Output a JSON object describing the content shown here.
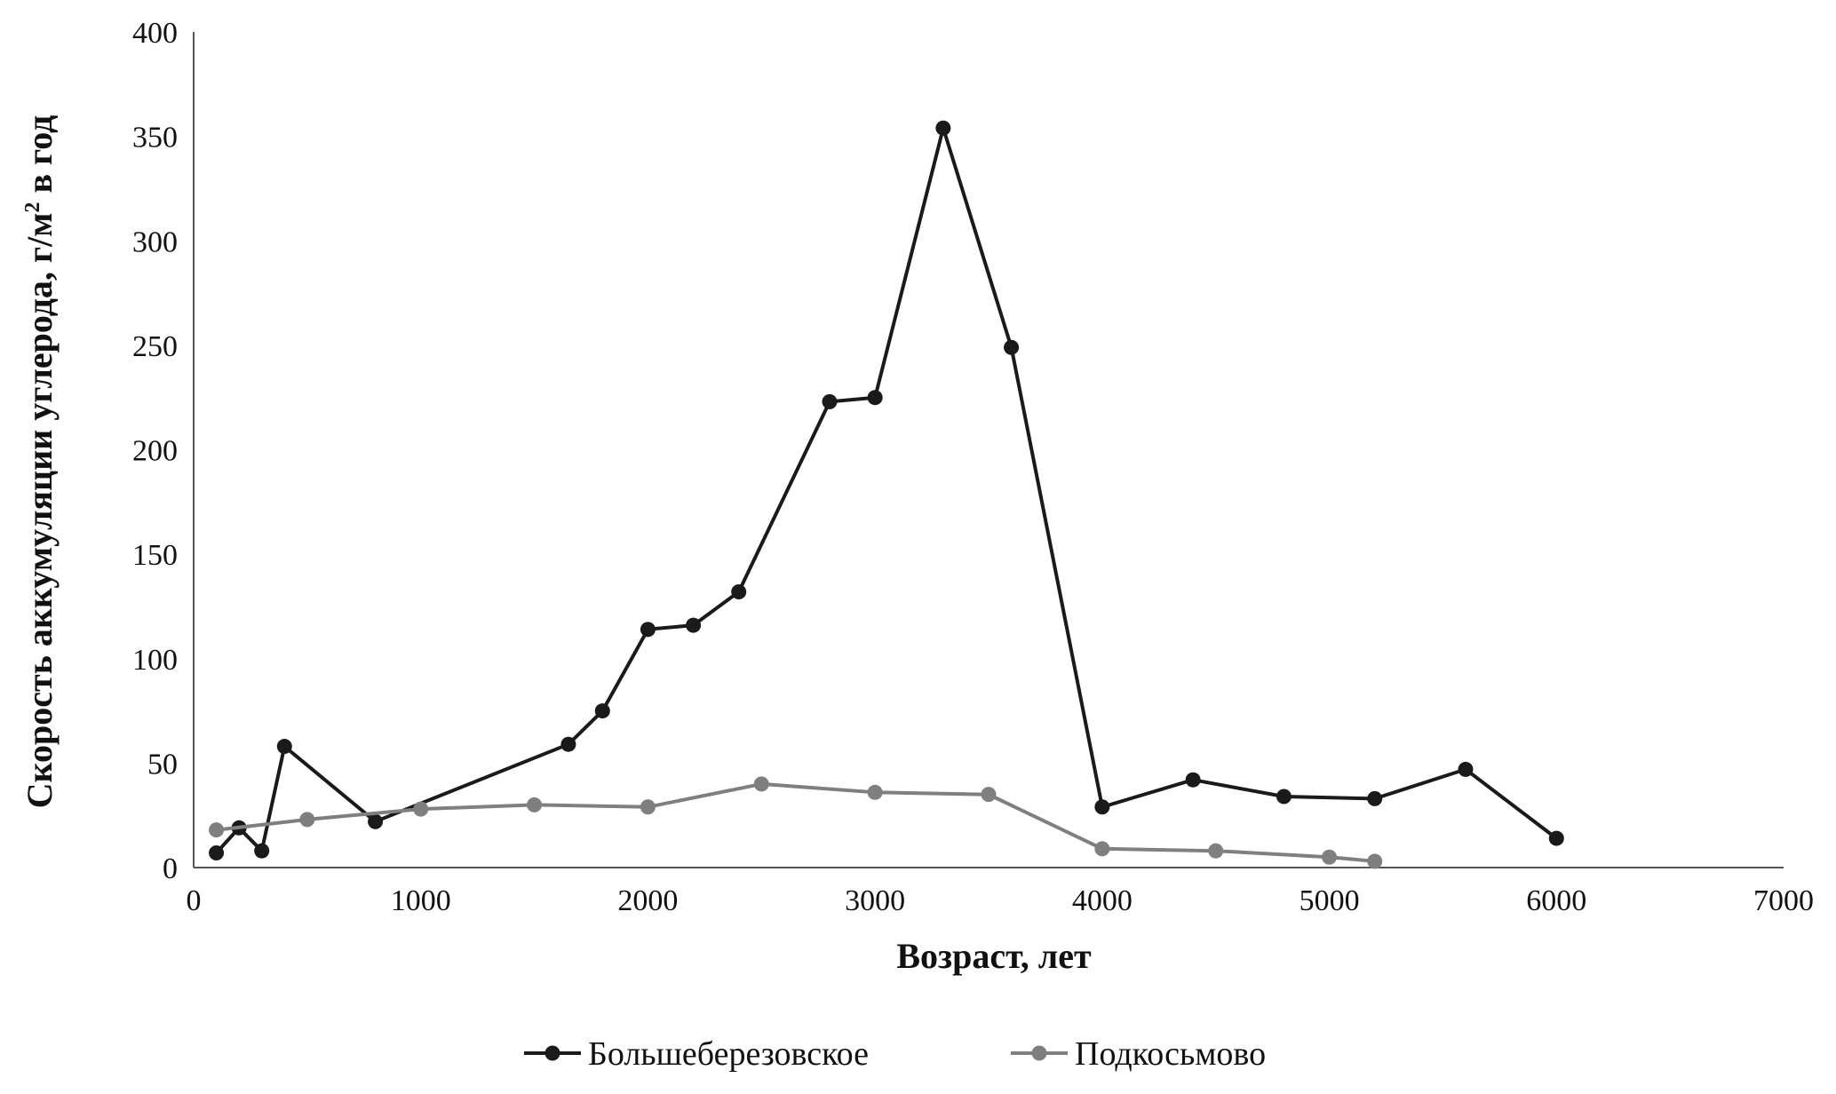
{
  "chart_data": {
    "type": "line",
    "xlabel": "Возраст, лет",
    "ylabel_main": "Скорость  аккумуляции углерода, г/м",
    "ylabel_sup": "2",
    "ylabel_tail": "  в год",
    "xlim": [
      0,
      7000
    ],
    "ylim": [
      0,
      400
    ],
    "xticks": [
      "0",
      "1000",
      "2000",
      "3000",
      "4000",
      "5000",
      "6000",
      "7000"
    ],
    "yticks": [
      "0",
      "50",
      "100",
      "150",
      "200",
      "250",
      "300",
      "350",
      "400"
    ],
    "grid": false,
    "legend_position": "bottom-center",
    "series": [
      {
        "name": "Большеберезовское",
        "color": "#1a1a1a",
        "points": [
          [
            100,
            7
          ],
          [
            200,
            19
          ],
          [
            300,
            8
          ],
          [
            400,
            58
          ],
          [
            800,
            22
          ],
          [
            1650,
            59
          ],
          [
            1800,
            75
          ],
          [
            2000,
            114
          ],
          [
            2200,
            116
          ],
          [
            2400,
            132
          ],
          [
            2800,
            223
          ],
          [
            3000,
            225
          ],
          [
            3300,
            354
          ],
          [
            3600,
            249
          ],
          [
            4000,
            29
          ],
          [
            4400,
            42
          ],
          [
            4800,
            34
          ],
          [
            5200,
            33
          ],
          [
            5600,
            47
          ],
          [
            6000,
            14
          ]
        ]
      },
      {
        "name": "Подкосьмово",
        "color": "#7f7f7f",
        "points": [
          [
            100,
            18
          ],
          [
            500,
            23
          ],
          [
            1000,
            28
          ],
          [
            1500,
            30
          ],
          [
            2000,
            29
          ],
          [
            2500,
            40
          ],
          [
            3000,
            36
          ],
          [
            3500,
            35
          ],
          [
            4000,
            9
          ],
          [
            4500,
            8
          ],
          [
            5000,
            5
          ],
          [
            5200,
            3
          ]
        ]
      }
    ]
  }
}
